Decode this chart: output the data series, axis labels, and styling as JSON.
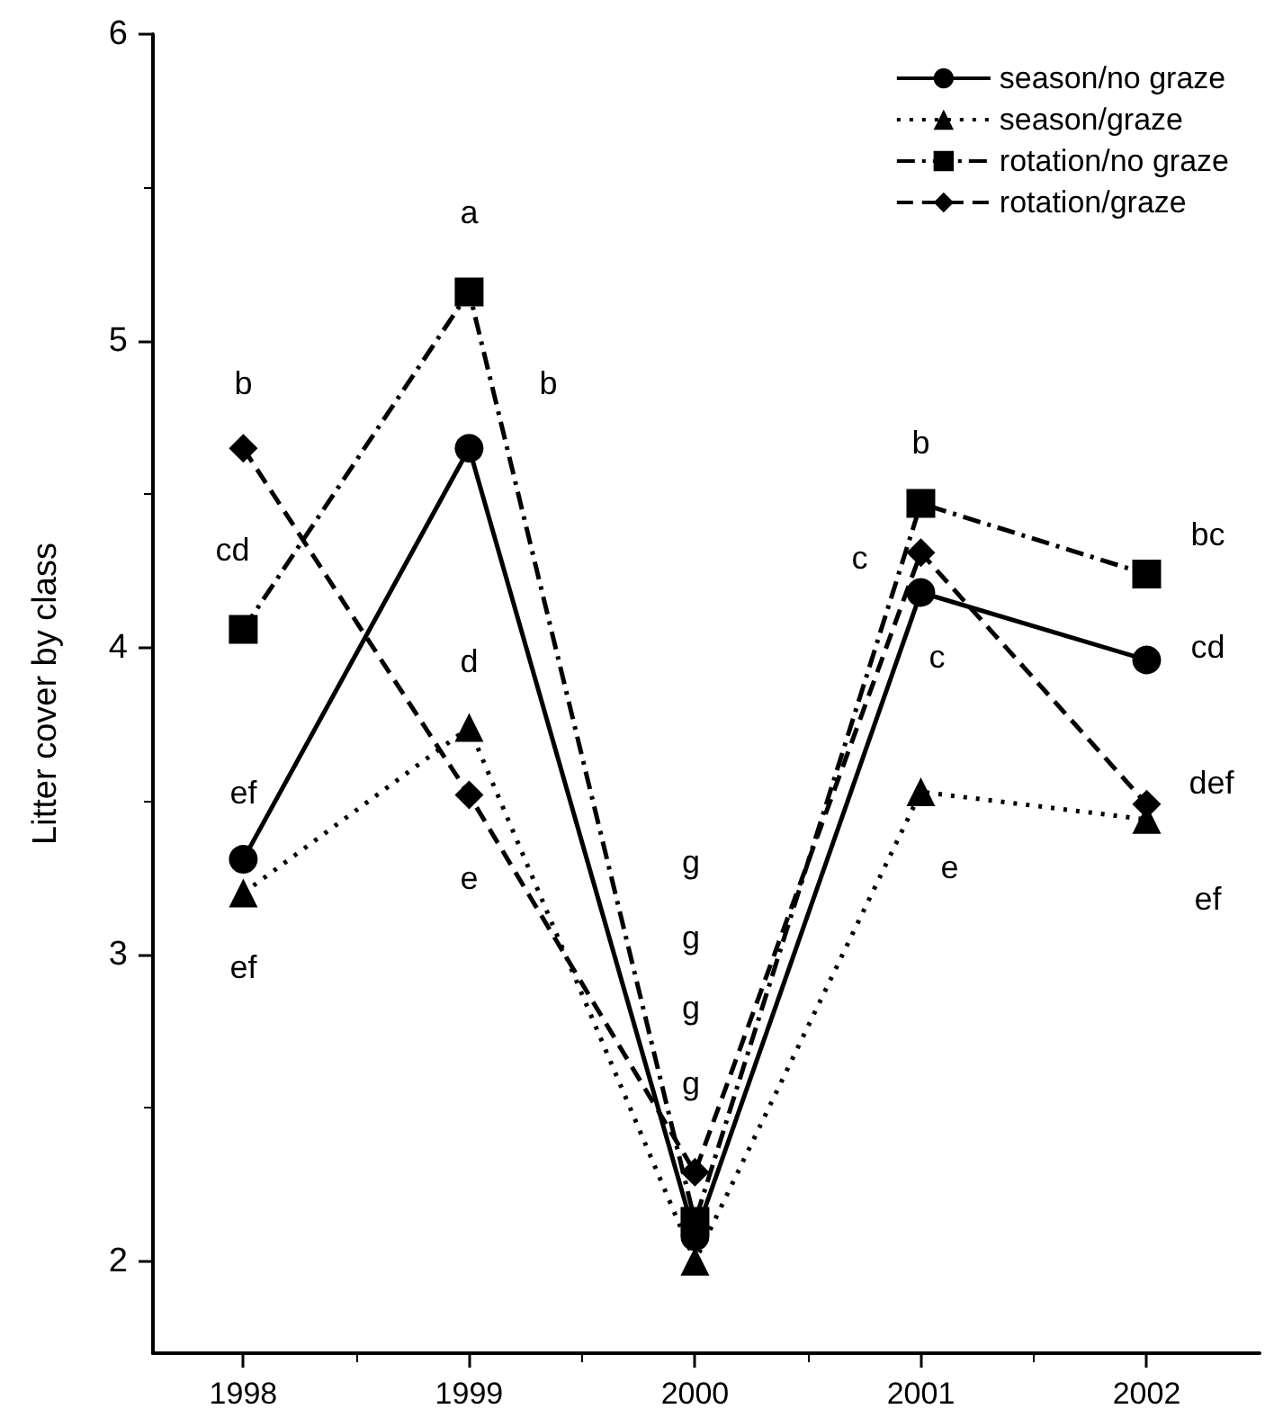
{
  "chart_data": {
    "type": "line",
    "ylabel": "Litter cover by class",
    "x": [
      1998,
      1999,
      2000,
      2001,
      2002
    ],
    "xlim": [
      1997.6,
      2002.5
    ],
    "xticks": [
      1998,
      1999,
      2000,
      2001,
      2002
    ],
    "ylim": [
      1.7,
      6
    ],
    "yticks": [
      2,
      3,
      4,
      5,
      6
    ],
    "grid": false,
    "legend": "top right",
    "series": [
      {
        "name": "season/no graze",
        "color": "#000000",
        "marker": "circle",
        "line_style": "solid",
        "values": [
          3.31,
          4.65,
          2.08,
          4.18,
          3.96
        ]
      },
      {
        "name": "season/graze",
        "color": "#000000",
        "marker": "triangle",
        "line_style": "dotted",
        "values": [
          3.2,
          3.74,
          2.0,
          3.53,
          3.44
        ]
      },
      {
        "name": "rotation/no graze",
        "color": "#000000",
        "marker": "square",
        "line_style": "dashdot",
        "values": [
          4.06,
          5.16,
          2.13,
          4.47,
          4.24
        ]
      },
      {
        "name": "rotation/graze",
        "color": "#000000",
        "marker": "diamond",
        "line_style": "dashed",
        "values": [
          4.65,
          3.52,
          2.29,
          4.31,
          3.49
        ]
      }
    ],
    "annotations": [
      {
        "text": "b",
        "x": 1998,
        "y": 4.65
      },
      {
        "text": "cd",
        "x": 1998,
        "y": 4.06
      },
      {
        "text": "ef",
        "x": 1998,
        "y": 3.31
      },
      {
        "text": "ef",
        "x": 1998,
        "y": 3.2
      },
      {
        "text": "a",
        "x": 1999,
        "y": 5.16
      },
      {
        "text": "b",
        "x": 1999,
        "y": 4.65
      },
      {
        "text": "d",
        "x": 1999,
        "y": 3.74
      },
      {
        "text": "e",
        "x": 1999,
        "y": 3.52
      },
      "g",
      "g",
      "g",
      "g",
      {
        "text": "b",
        "x": 2001,
        "y": 4.47
      },
      {
        "text": "c",
        "x": 2001,
        "y": 4.31
      },
      {
        "text": "c",
        "x": 2001,
        "y": 4.18
      },
      {
        "text": "e",
        "x": 2001,
        "y": 3.53
      },
      {
        "text": "bc",
        "x": 2002,
        "y": 4.24
      },
      {
        "text": "cd",
        "x": 2002,
        "y": 3.96
      },
      {
        "text": "def",
        "x": 2002,
        "y": 3.49
      },
      {
        "text": "ef",
        "x": 2002,
        "y": 3.44
      }
    ]
  }
}
